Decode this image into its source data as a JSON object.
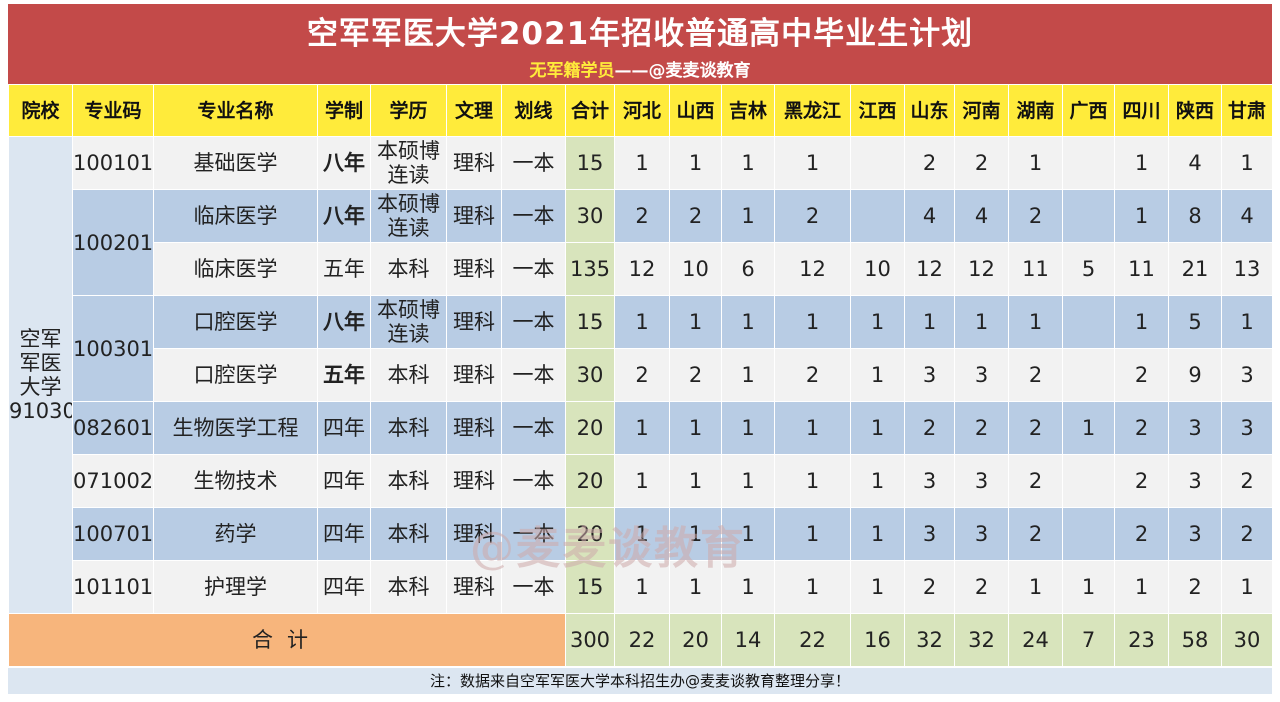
{
  "title": "空军军医大学2021年招收普通高中毕业生计划",
  "subtitle": {
    "highlight": "无军籍学员",
    "rest": "——@麦麦谈教育"
  },
  "headers": [
    "院校",
    "专业码",
    "专业名称",
    "学制",
    "学历",
    "文理",
    "划线",
    "合计",
    "河北",
    "山西",
    "吉林",
    "黑龙江",
    "江西",
    "山东",
    "河南",
    "湖南",
    "广西",
    "四川",
    "陕西",
    "甘肃"
  ],
  "school": {
    "line1": "空军",
    "line2": "军医",
    "line3": "大学",
    "line4": "91030"
  },
  "codes": {
    "c1": "100101",
    "c2": "100201",
    "c3": "100301",
    "c4": "082601",
    "c5": "071002",
    "c6": "100701",
    "c7": "101101"
  },
  "rows": [
    {
      "name": "基础医学",
      "years": "八年",
      "edu1": "本硕博",
      "edu2": "连读",
      "track": "理科",
      "line": "一本",
      "total": "15",
      "prov": [
        "1",
        "1",
        "1",
        "1",
        "",
        "2",
        "2",
        "1",
        "",
        "1",
        "4",
        "1"
      ]
    },
    {
      "name": "临床医学",
      "years": "八年",
      "edu1": "本硕博",
      "edu2": "连读",
      "track": "理科",
      "line": "一本",
      "total": "30",
      "prov": [
        "2",
        "2",
        "1",
        "2",
        "",
        "4",
        "4",
        "2",
        "",
        "1",
        "8",
        "4"
      ]
    },
    {
      "name": "临床医学",
      "years": "五年",
      "edu1": "本科",
      "edu2": "",
      "track": "理科",
      "line": "一本",
      "total": "135",
      "prov": [
        "12",
        "10",
        "6",
        "12",
        "10",
        "12",
        "12",
        "11",
        "5",
        "11",
        "21",
        "13"
      ]
    },
    {
      "name": "口腔医学",
      "years": "八年",
      "edu1": "本硕博",
      "edu2": "连读",
      "track": "理科",
      "line": "一本",
      "total": "15",
      "prov": [
        "1",
        "1",
        "1",
        "1",
        "1",
        "1",
        "1",
        "1",
        "",
        "1",
        "5",
        "1"
      ]
    },
    {
      "name": "口腔医学",
      "years": "五年",
      "edu1": "本科",
      "edu2": "",
      "track": "理科",
      "line": "一本",
      "total": "30",
      "prov": [
        "2",
        "2",
        "1",
        "2",
        "1",
        "3",
        "3",
        "2",
        "",
        "2",
        "9",
        "3"
      ]
    },
    {
      "name": "生物医学工程",
      "years": "四年",
      "edu1": "本科",
      "edu2": "",
      "track": "理科",
      "line": "一本",
      "total": "20",
      "prov": [
        "1",
        "1",
        "1",
        "1",
        "1",
        "2",
        "2",
        "2",
        "1",
        "2",
        "3",
        "3"
      ]
    },
    {
      "name": "生物技术",
      "years": "四年",
      "edu1": "本科",
      "edu2": "",
      "track": "理科",
      "line": "一本",
      "total": "20",
      "prov": [
        "1",
        "1",
        "1",
        "1",
        "1",
        "3",
        "3",
        "2",
        "",
        "2",
        "3",
        "2"
      ]
    },
    {
      "name": "药学",
      "years": "四年",
      "edu1": "本科",
      "edu2": "",
      "track": "理科",
      "line": "一本",
      "total": "20",
      "prov": [
        "1",
        "1",
        "1",
        "1",
        "1",
        "3",
        "3",
        "2",
        "",
        "2",
        "3",
        "2"
      ]
    },
    {
      "name": "护理学",
      "years": "四年",
      "edu1": "本科",
      "edu2": "",
      "track": "理科",
      "line": "一本",
      "total": "15",
      "prov": [
        "1",
        "1",
        "1",
        "1",
        "1",
        "2",
        "2",
        "1",
        "1",
        "1",
        "2",
        "1"
      ]
    }
  ],
  "total": {
    "label": "合计",
    "sum": "300",
    "prov": [
      "22",
      "20",
      "14",
      "22",
      "16",
      "32",
      "32",
      "24",
      "7",
      "23",
      "58",
      "30"
    ]
  },
  "note": "注：数据来自空军军医大学本科招生办@麦麦谈教育整理分享！",
  "watermark": "@麦麦谈教育",
  "colors": {
    "title_bg": "#c34a49",
    "header_bg": "#ffeb3b",
    "row_blue": "#b8cce4",
    "row_light": "#f2f2f2",
    "sum_col": "#d8e4bc",
    "total_label_bg": "#f7b57c",
    "eight_year": "#c00000",
    "five_year_dental": "#7030a0"
  }
}
